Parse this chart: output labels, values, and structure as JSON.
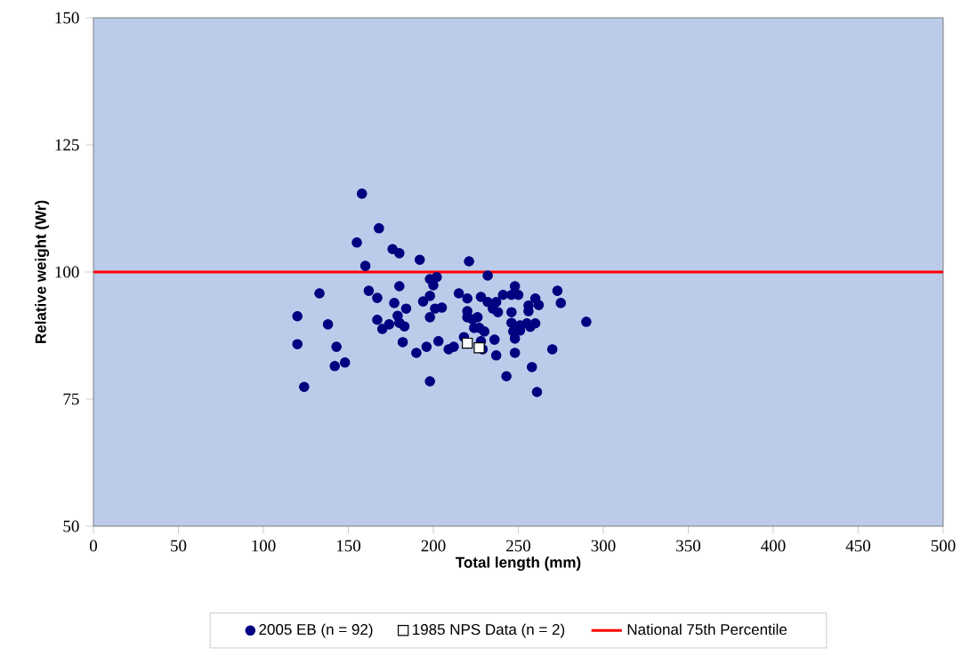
{
  "chart_data": {
    "type": "scatter",
    "xlabel": "Total length (mm)",
    "ylabel": "Relative weight (Wr)",
    "xlim": [
      0,
      500
    ],
    "xticks": [
      0,
      50,
      100,
      150,
      200,
      250,
      300,
      350,
      400,
      450,
      500
    ],
    "ylim": [
      50,
      150
    ],
    "yticks": [
      50,
      75,
      100,
      125,
      150
    ],
    "legend": "bottom",
    "series": [
      {
        "name": "2005 EB (n = 92)",
        "color": "#000080",
        "marker": "circle",
        "x": [
          120,
          120,
          124,
          133,
          138,
          142,
          143,
          148,
          155,
          158,
          160,
          162,
          168,
          167,
          167,
          170,
          174,
          176,
          177,
          179,
          180,
          180,
          180,
          183,
          184,
          182,
          190,
          192,
          194,
          196,
          198,
          198,
          198,
          198,
          200,
          202,
          201,
          205,
          203,
          209,
          212,
          215,
          218,
          221,
          220,
          220,
          220,
          223,
          226,
          224,
          227,
          230,
          228,
          232,
          232,
          237,
          235,
          238,
          241,
          229,
          228,
          236,
          237,
          243,
          248,
          246,
          250,
          246,
          246,
          247,
          248,
          248,
          251,
          251,
          255,
          257,
          256,
          256,
          260,
          260,
          262,
          258,
          261,
          270,
          273,
          275,
          290
        ],
        "values": [
          91.3,
          85.8,
          77.4,
          95.8,
          89.7,
          81.5,
          85.3,
          82.2,
          105.8,
          115.4,
          101.2,
          96.3,
          108.6,
          94.9,
          90.6,
          88.8,
          89.7,
          104.5,
          93.9,
          91.4,
          90.0,
          103.7,
          97.2,
          89.3,
          92.8,
          86.2,
          84.1,
          102.4,
          94.2,
          85.3,
          98.6,
          95.3,
          91.1,
          78.5,
          97.4,
          99.0,
          92.8,
          93.0,
          86.4,
          84.8,
          85.3,
          95.8,
          87.2,
          102.1,
          94.8,
          92.3,
          91.1,
          90.7,
          91.1,
          89.0,
          89.0,
          88.3,
          95.1,
          99.3,
          94.1,
          94.1,
          92.8,
          92.1,
          95.5,
          84.8,
          86.4,
          86.7,
          83.6,
          79.5,
          97.2,
          95.5,
          95.5,
          92.1,
          90.0,
          88.3,
          86.9,
          84.1,
          89.5,
          88.5,
          89.9,
          89.2,
          93.4,
          92.3,
          89.9,
          94.8,
          93.5,
          81.3,
          76.4,
          84.8,
          96.3,
          93.9,
          90.2
        ]
      },
      {
        "name": "1985 NPS Data (n = 2)",
        "color": "#ffffff",
        "marker": "square",
        "x": [
          220,
          227
        ],
        "values": [
          86.0,
          85.1
        ]
      }
    ],
    "ref_lines": [
      {
        "axis": "y",
        "value": 100,
        "label": "National 75th Percentile",
        "color": "#ff0000"
      }
    ]
  }
}
